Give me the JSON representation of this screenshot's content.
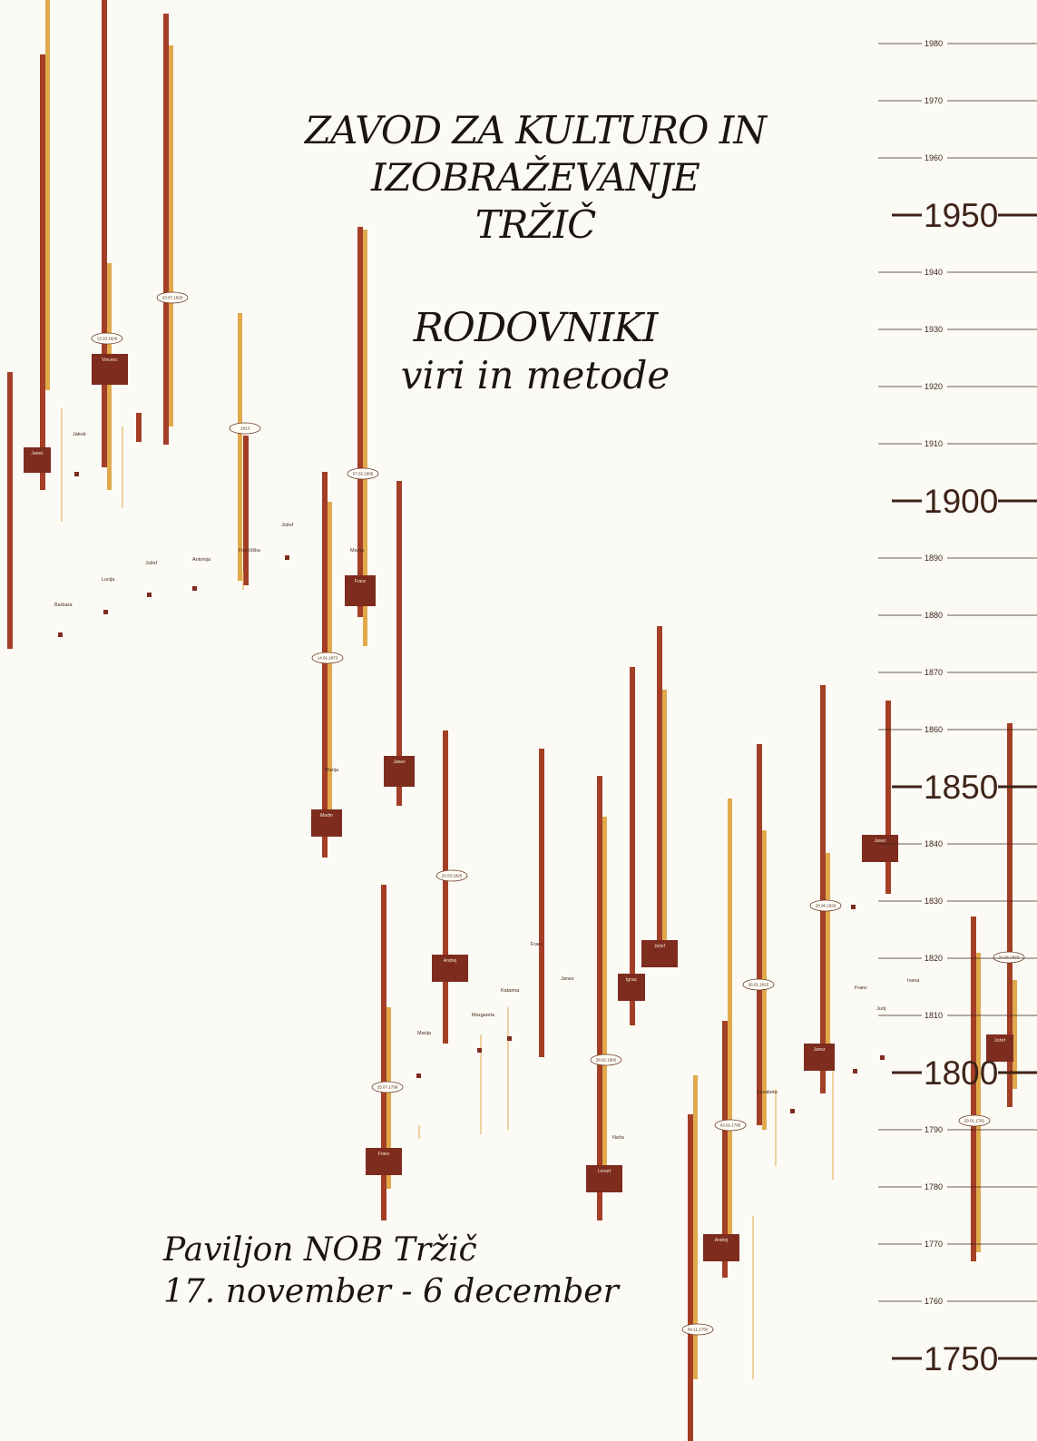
{
  "header": {
    "title_lines": [
      "ZAVOD ZA KULTURO IN",
      "IZOBRAŽEVANJE",
      "TRŽIČ"
    ]
  },
  "subtitle": {
    "main": "RODOVNIKI",
    "sub": "viri in metode"
  },
  "venue": {
    "place": "Paviljon NOB Tržič",
    "dates": "17. november - 6 december"
  },
  "colors": {
    "background": "#fbfaf5",
    "bar_dark": "#a33f26",
    "bar_light": "#e0a94c",
    "box": "#7e2c1e",
    "axis": "#3f2318",
    "text": "#1b1414"
  },
  "timeline": {
    "major_years": [
      "1950",
      "1900",
      "1850",
      "1800",
      "1750"
    ],
    "minor_years": [
      "1980",
      "1970",
      "1960",
      "1940",
      "1930",
      "1920",
      "1910",
      "1890",
      "1880",
      "1870",
      "1860",
      "1840",
      "1830",
      "1820",
      "1810",
      "1790",
      "1780",
      "1770",
      "1760"
    ]
  },
  "person_boxes": [
    {
      "name": "Janez"
    },
    {
      "name": "Vincenc"
    },
    {
      "name": "Franc"
    },
    {
      "name": "Janez"
    },
    {
      "name": "Martin"
    },
    {
      "name": "Andrej"
    },
    {
      "name": "Ignac"
    },
    {
      "name": "Jožef"
    },
    {
      "name": "Franc"
    },
    {
      "name": "Lenart"
    },
    {
      "name": "Andrej"
    },
    {
      "name": "Janez"
    },
    {
      "name": "Janez"
    },
    {
      "name": "Jožef"
    }
  ],
  "name_labels": [
    "Jakob",
    "Lucija",
    "Barbara",
    "Jožef",
    "Antonija",
    "Jožef",
    "Frančiška",
    "Marija",
    "Margareta",
    "Katarina",
    "Janez",
    "Franc",
    "Marija",
    "Elizabeta",
    "Franc",
    "Ivana",
    "Jurij",
    "Marija",
    "Neža"
  ],
  "date_ovals": [
    "13.10.1826",
    "23.07.1826",
    "1813",
    "07.02.1805",
    "14.01.1873",
    "23.03.1825",
    "25.07.1799",
    "28.02.1802",
    "26.01.1815",
    "03.02.1795",
    "28.06.1829",
    "21.06.1823",
    "29.01.1781",
    "09.11.1750"
  ]
}
